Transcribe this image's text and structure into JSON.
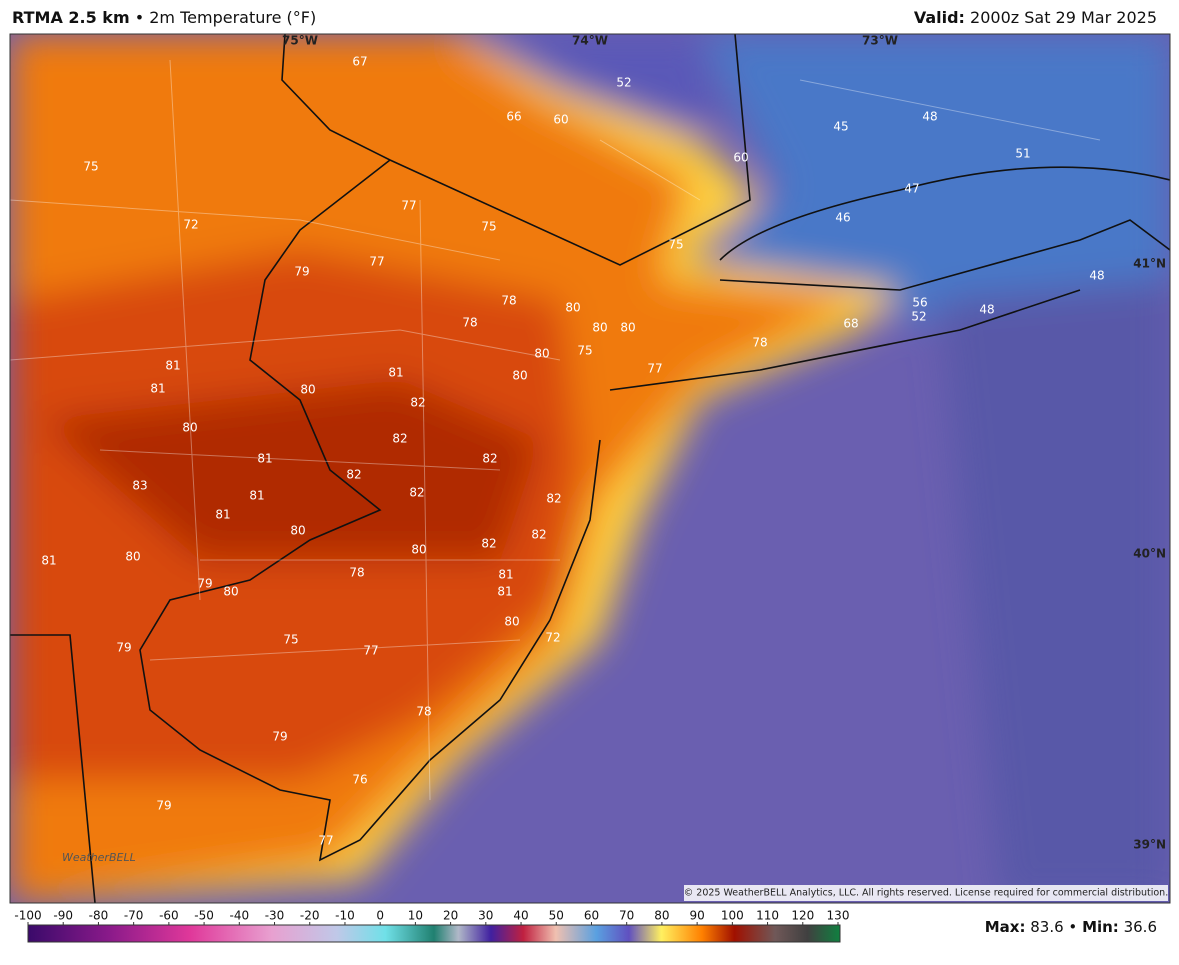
{
  "header": {
    "model": "RTMA 2.5 km",
    "separator": "•",
    "field": "2m Temperature (°F)",
    "valid_label": "Valid:",
    "valid_time": "2000z Sat 29 Mar 2025"
  },
  "map": {
    "longitude_labels": [
      "75°W",
      "74°W",
      "73°W"
    ],
    "latitude_labels": [
      "41°N",
      "40°N",
      "39°N"
    ],
    "temperature_labels": [
      67,
      66,
      60,
      52,
      60,
      45,
      48,
      51,
      47,
      46,
      75,
      72,
      77,
      75,
      75,
      79,
      77,
      48,
      56,
      52,
      48,
      78,
      80,
      78,
      80,
      80,
      68,
      78,
      80,
      75,
      81,
      81,
      80,
      81,
      77,
      80,
      82,
      80,
      82,
      81,
      82,
      82,
      83,
      81,
      82,
      82,
      81,
      80,
      82,
      82,
      80,
      81,
      80,
      78,
      81,
      79,
      80,
      81,
      80,
      72,
      75,
      79,
      77,
      78,
      79,
      76,
      79,
      77
    ],
    "logo": "WeatherBELL",
    "copyright": "© 2025 WeatherBELL Analytics, LLC. All rights reserved. License required for commercial distribution."
  },
  "colorbar": {
    "ticks": [
      -100,
      -90,
      -80,
      -70,
      -60,
      -50,
      -40,
      -30,
      -20,
      -10,
      0,
      10,
      20,
      30,
      40,
      50,
      60,
      70,
      80,
      90,
      100,
      110,
      120,
      130
    ]
  },
  "footer": {
    "max_label": "Max:",
    "max": "83.6",
    "separator": "•",
    "min_label": "Min:",
    "min": "36.6"
  }
}
